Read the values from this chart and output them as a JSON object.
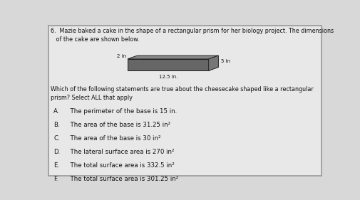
{
  "question_number": "6.",
  "question_text": "  Mazie baked a cake in the shape of a rectangular prism for her biology project. The dimensions\n   of the cake are shown below.",
  "follow_up_text": "Which of the following statements are true about the cheesecake shaped like a rectangular\nprism? Select ALL that apply",
  "dim_length_label": "12.5 in.",
  "dim_width_label": "5 in",
  "dim_height_label": "2 in",
  "options": [
    [
      "A.",
      "  The perimeter of the base is 15 in."
    ],
    [
      "B.",
      "  The area of the base is 31.25 in²"
    ],
    [
      "C.",
      "  The area of the base is 30 in²"
    ],
    [
      "D.",
      "  The lateral surface area is 270 in²"
    ],
    [
      "E.",
      "  The total surface area is 332.5 in²"
    ],
    [
      "F.",
      "  The total surface area is 301.25 in²"
    ]
  ],
  "bg_color": "#d8d8d8",
  "box_color": "#e8e8e8",
  "text_color": "#111111",
  "prism_front_color": "#666666",
  "prism_top_color": "#888888",
  "prism_right_color": "#777777",
  "prism_edge_color": "#222222"
}
